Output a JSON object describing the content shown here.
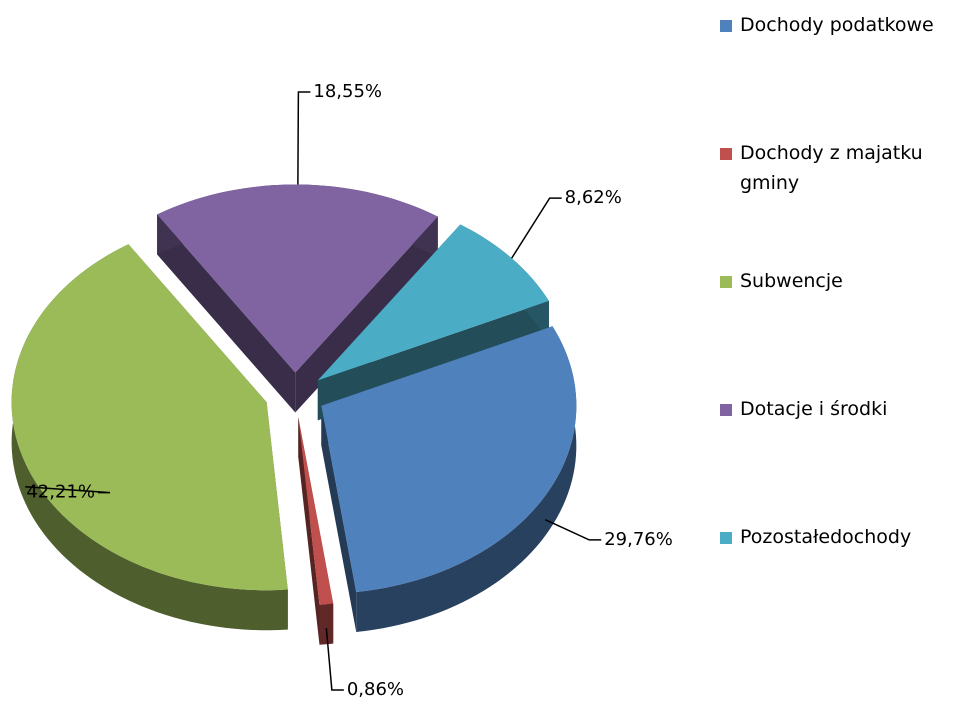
{
  "chart_data": {
    "type": "pie",
    "categories": [
      "Dochody podatkowe",
      "Dochody z majatku gminy",
      "Subwencje",
      "Dotacje i środki",
      "Pozostałedochody"
    ],
    "values": [
      29.76,
      0.86,
      42.21,
      18.55,
      8.62
    ],
    "value_labels": [
      "29,76%",
      "0,86%",
      "42,21%",
      "18,55%",
      "8,62%"
    ],
    "colors": [
      "#4f81bd",
      "#c0504d",
      "#9bbb59",
      "#8064a2",
      "#4bacc6"
    ],
    "legend": "right"
  }
}
